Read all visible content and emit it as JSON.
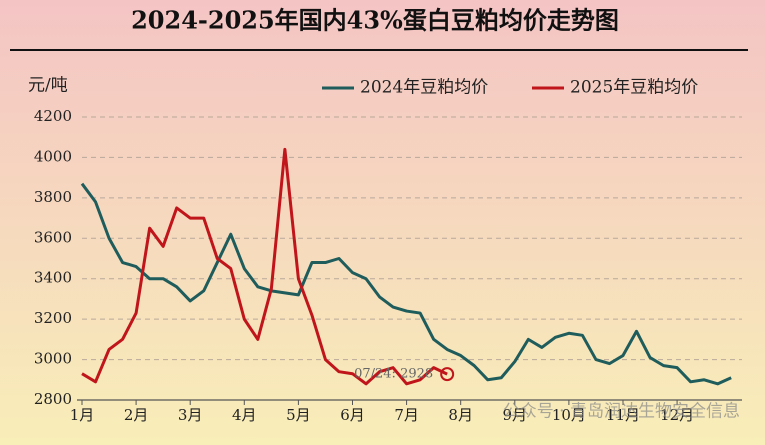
{
  "chart_data": {
    "type": "line",
    "title": "2024-2025年国内43%蛋白豆粕均价走势图",
    "y_label": "元/吨",
    "annotation": "07/24: 2928",
    "watermark": "公众号 · 青岛润达生物安全信息",
    "x": [
      1,
      1.25,
      1.5,
      1.75,
      2,
      2.25,
      2.5,
      2.75,
      3,
      3.25,
      3.5,
      3.75,
      4,
      4.25,
      4.5,
      4.75,
      5,
      5.25,
      5.5,
      5.75,
      6,
      6.25,
      6.5,
      6.75,
      7,
      7.25,
      7.5,
      7.75,
      8,
      8.25,
      8.5,
      8.75,
      9,
      9.25,
      9.5,
      9.75,
      10,
      10.25,
      10.5,
      10.75,
      11,
      11.25,
      11.5,
      11.75,
      12,
      12.25,
      12.5,
      12.75,
      13
    ],
    "series": [
      {
        "name": "2024年豆粕均价",
        "color": "#1f5c5c",
        "values": [
          3870,
          3780,
          3600,
          3480,
          3460,
          3400,
          3400,
          3360,
          3290,
          3340,
          3480,
          3620,
          3450,
          3360,
          3340,
          3330,
          3320,
          3480,
          3480,
          3500,
          3430,
          3400,
          3310,
          3260,
          3240,
          3230,
          3100,
          3050,
          3020,
          2970,
          2900,
          2910,
          2990,
          3100,
          3060,
          3110,
          3130,
          3120,
          3000,
          2980,
          3020,
          3140,
          3010,
          2970,
          2960,
          2890,
          2900,
          2880,
          2910
        ]
      },
      {
        "name": "2025年豆粕均价",
        "color": "#c0151b",
        "values": [
          2930,
          2890,
          3050,
          3100,
          3230,
          3650,
          3560,
          3750,
          3700,
          3700,
          3500,
          3450,
          3200,
          3100,
          3350,
          4040,
          3400,
          3220,
          3000,
          2940,
          2930,
          2880,
          2940,
          2960,
          2880,
          2900,
          2960,
          2928,
          null,
          null,
          null,
          null,
          null,
          null,
          null,
          null,
          null,
          null,
          null,
          null,
          null,
          null,
          null,
          null,
          null,
          null,
          null,
          null,
          null
        ]
      }
    ],
    "xlim": [
      1,
      13.2
    ],
    "xticks": [
      {
        "value": 1,
        "label": "1月"
      },
      {
        "value": 2,
        "label": "2月"
      },
      {
        "value": 3,
        "label": "3月"
      },
      {
        "value": 4,
        "label": "4月"
      },
      {
        "value": 5,
        "label": "5月"
      },
      {
        "value": 6,
        "label": "6月"
      },
      {
        "value": 7,
        "label": "7月"
      },
      {
        "value": 8,
        "label": "8月"
      },
      {
        "value": 9,
        "label": "9月"
      },
      {
        "value": 10,
        "label": "10月"
      },
      {
        "value": 11,
        "label": "11月"
      },
      {
        "value": 12,
        "label": "12月"
      }
    ],
    "ylim": [
      2800,
      4200
    ],
    "yticks": [
      2800,
      3000,
      3200,
      3400,
      3600,
      3800,
      4000,
      4200
    ],
    "grid": true
  }
}
